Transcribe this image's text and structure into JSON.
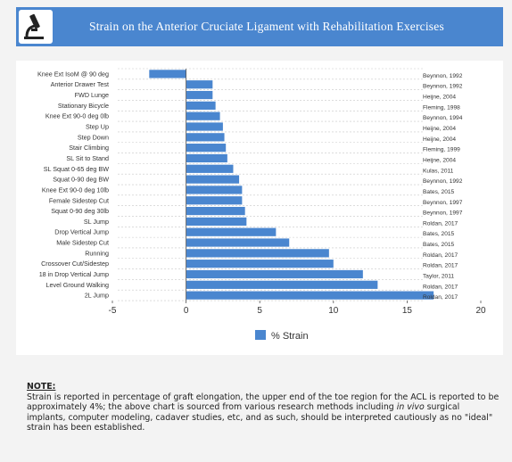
{
  "header": {
    "title": "Strain on the Anterior Cruciate Ligament with Rehabilitation Exercises",
    "logo_icon": "microscope-icon"
  },
  "colors": {
    "accent": "#4a86cf",
    "bar": "#4a86cf"
  },
  "chart_data": {
    "type": "bar",
    "orientation": "horizontal",
    "categories": [
      "Knee Ext IsoM @ 90 deg",
      "Anterior Drawer Test",
      "FWD Lunge",
      "Stationary Bicycle",
      "Knee Ext 90-0 deg 0lb",
      "Step Up",
      "Step Down",
      "Stair Climbing",
      "SL Sit to Stand",
      "SL Squat 0-65 deg BW",
      "Squat 0-90 deg BW",
      "Knee Ext 90-0 deg 10lb",
      "Female Sidestep Cut",
      "Squat 0-90 deg 30lb",
      "SL Jump",
      "Drop Vertical Jump",
      "Male Sidestep Cut",
      "Running",
      "Crossover Cut/Sidestep",
      "18 in Drop Vertical Jump",
      "Level Ground Walking",
      "2L Jump"
    ],
    "series": [
      {
        "name": "% Strain",
        "values": [
          -2.5,
          1.8,
          1.8,
          2.0,
          2.3,
          2.5,
          2.6,
          2.7,
          2.8,
          3.2,
          3.6,
          3.8,
          3.8,
          4.0,
          4.1,
          6.1,
          7.0,
          9.7,
          10.0,
          12.0,
          13.0,
          16.8
        ]
      }
    ],
    "sources": [
      "Beynnon, 1992",
      "Beynnon, 1992",
      "Heijne, 2004",
      "Fleming, 1998",
      "Beynnon, 1994",
      "Heijne, 2004",
      "Heijne, 2004",
      "Fleming, 1999",
      "Heijne, 2004",
      "Kulas, 2011",
      "Beynnon, 1992",
      "Bates, 2015",
      "Beynnon, 1997",
      "Beynnon, 1997",
      "Roldan, 2017",
      "Bates, 2015",
      "Bates, 2015",
      "Roldan, 2017",
      "Roldan, 2017",
      "Taylor, 2011",
      "Roldan, 2017",
      "Roldan, 2017"
    ],
    "xticks": [
      "-5",
      "0",
      "5",
      "10",
      "15",
      "20"
    ],
    "xlim": [
      -5,
      20
    ],
    "grid": "horizontal",
    "legend": "bottom"
  },
  "note": {
    "heading": "NOTE:",
    "text_before": "Strain is reported in percentage of graft elongation, the upper end of the toe region for the ACL is reported to be approximately 4%; the above chart is sourced from various research methods including ",
    "emphasis": "in vivo",
    "text_after": " surgical implants, computer modeling, cadaver studies, etc, and as such, should be interpreted cautiously as no \"ideal\" strain has been established."
  }
}
